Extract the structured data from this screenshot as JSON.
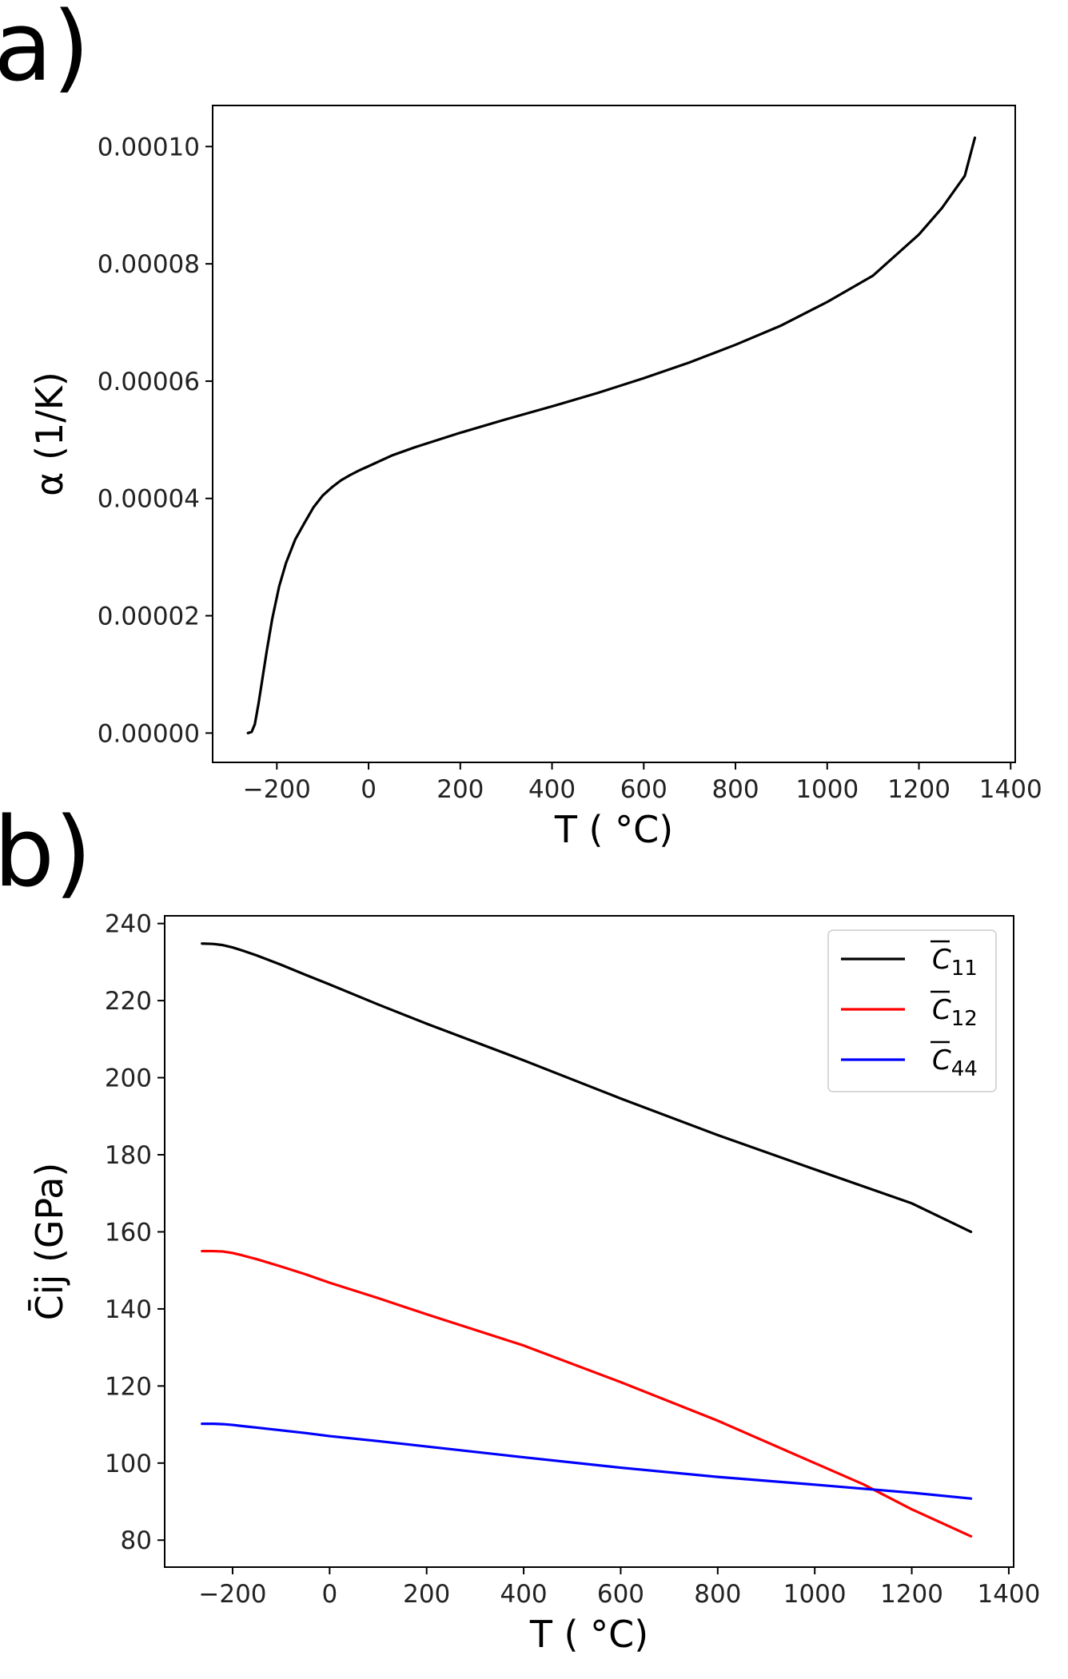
{
  "panel_labels": [
    "a)",
    "b)"
  ],
  "chart_data": [
    {
      "type": "line",
      "panel": "a)",
      "title": "",
      "xlabel": "T ( °C)",
      "ylabel": "α (1/K)",
      "xlim": [
        -340,
        1410
      ],
      "ylim": [
        -5e-06,
        0.000107
      ],
      "xticks": [
        -200,
        0,
        200,
        400,
        600,
        800,
        1000,
        1200,
        1400
      ],
      "xtick_labels": [
        "−200",
        "0",
        "200",
        "400",
        "600",
        "800",
        "1000",
        "1200",
        "1400"
      ],
      "yticks": [
        0.0,
        2e-05,
        4e-05,
        6e-05,
        8e-05,
        0.0001
      ],
      "ytick_labels": [
        "0.00000",
        "0.00002",
        "0.00004",
        "0.00006",
        "0.00008",
        "0.00010"
      ],
      "grid": false,
      "series": [
        {
          "name": "alpha",
          "color": "#000000",
          "x": [
            -263,
            -255,
            -248,
            -240,
            -232,
            -222,
            -210,
            -195,
            -180,
            -160,
            -140,
            -120,
            -100,
            -80,
            -60,
            -40,
            -20,
            0,
            50,
            100,
            200,
            300,
            400,
            500,
            600,
            700,
            800,
            900,
            1000,
            1100,
            1200,
            1250,
            1300,
            1322
          ],
          "y": [
            0.0,
            2e-07,
            1.5e-06,
            5e-06,
            9e-06,
            1.4e-05,
            1.95e-05,
            2.5e-05,
            2.9e-05,
            3.3e-05,
            3.58e-05,
            3.85e-05,
            4.05e-05,
            4.19e-05,
            4.31e-05,
            4.4e-05,
            4.48e-05,
            4.55e-05,
            4.73e-05,
            4.87e-05,
            5.12e-05,
            5.35e-05,
            5.57e-05,
            5.8e-05,
            6.05e-05,
            6.32e-05,
            6.62e-05,
            6.95e-05,
            7.35e-05,
            7.8e-05,
            8.5e-05,
            8.95e-05,
            9.5e-05,
            0.0001015
          ]
        }
      ]
    },
    {
      "type": "line",
      "panel": "b)",
      "title": "",
      "xlabel": "T ( °C)",
      "ylabel": "C̄ij (GPa)",
      "xlim": [
        -340,
        1410
      ],
      "ylim": [
        73,
        242
      ],
      "xticks": [
        -200,
        0,
        200,
        400,
        600,
        800,
        1000,
        1200,
        1400
      ],
      "xtick_labels": [
        "−200",
        "0",
        "200",
        "400",
        "600",
        "800",
        "1000",
        "1200",
        "1400"
      ],
      "yticks": [
        80,
        100,
        120,
        140,
        160,
        180,
        200,
        220,
        240
      ],
      "ytick_labels": [
        "80",
        "100",
        "120",
        "140",
        "160",
        "180",
        "200",
        "220",
        "240"
      ],
      "grid": false,
      "legend_position": "top-right",
      "series": [
        {
          "name": "C̄11",
          "base": "C",
          "sub": "11",
          "color": "#000000",
          "x": [
            -263,
            -240,
            -220,
            -200,
            -180,
            -150,
            -100,
            -50,
            0,
            100,
            200,
            400,
            600,
            800,
            1000,
            1200,
            1322
          ],
          "y": [
            234.8,
            234.7,
            234.4,
            233.8,
            233.0,
            231.7,
            229.3,
            226.7,
            224.2,
            219.0,
            214.0,
            204.5,
            194.6,
            185.1,
            176.2,
            167.4,
            160.0
          ]
        },
        {
          "name": "C̄12",
          "base": "C",
          "sub": "12",
          "color": "#ff0000",
          "x": [
            -263,
            -240,
            -220,
            -200,
            -180,
            -150,
            -100,
            -50,
            0,
            100,
            200,
            400,
            600,
            800,
            1000,
            1100,
            1200,
            1322
          ],
          "y": [
            155.0,
            155.0,
            154.9,
            154.5,
            153.9,
            152.9,
            151.0,
            149.0,
            146.8,
            142.8,
            138.6,
            130.5,
            121.0,
            111.0,
            100.0,
            94.5,
            88.0,
            81.0
          ]
        },
        {
          "name": "C̄44",
          "base": "C",
          "sub": "44",
          "color": "#0000ff",
          "x": [
            -263,
            -240,
            -220,
            -200,
            -180,
            -150,
            -100,
            -50,
            0,
            100,
            200,
            400,
            600,
            800,
            1000,
            1200,
            1322
          ],
          "y": [
            110.2,
            110.2,
            110.1,
            109.9,
            109.6,
            109.2,
            108.5,
            107.8,
            107.0,
            105.7,
            104.3,
            101.5,
            98.8,
            96.4,
            94.4,
            92.3,
            90.8
          ]
        }
      ]
    }
  ]
}
